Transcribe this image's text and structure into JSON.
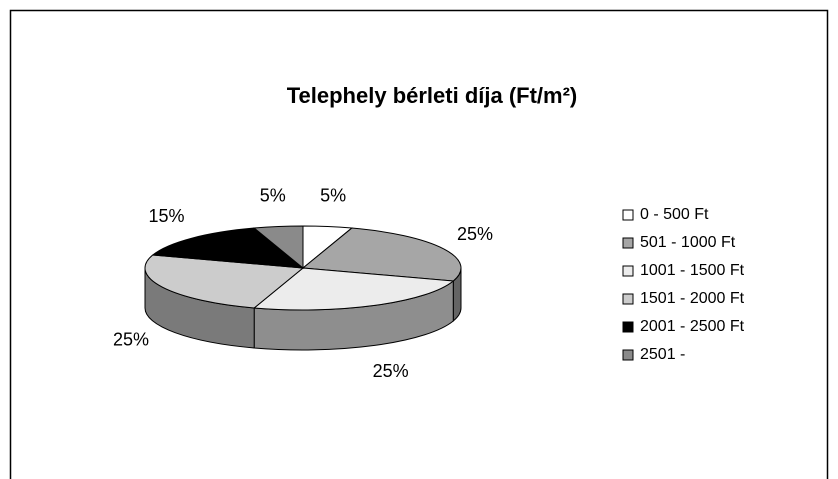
{
  "chart_data": {
    "type": "pie3d",
    "title": "Telephely bérleti díja (Ft/m²)",
    "categories": [
      "0 - 500 Ft",
      "501 - 1000 Ft",
      "1001 - 1500 Ft",
      "1501 - 2000 Ft",
      "2001 - 2500 Ft",
      "2501 -"
    ],
    "values": [
      5,
      25,
      25,
      25,
      15,
      5
    ],
    "value_labels": [
      "5%",
      "25%",
      "25%",
      "25%",
      "15%",
      "5%"
    ],
    "colors": [
      "#ffffff",
      "#a6a6a6",
      "#ececec",
      "#cccccc",
      "#000000",
      "#8a8a8a"
    ],
    "legend": "right"
  }
}
